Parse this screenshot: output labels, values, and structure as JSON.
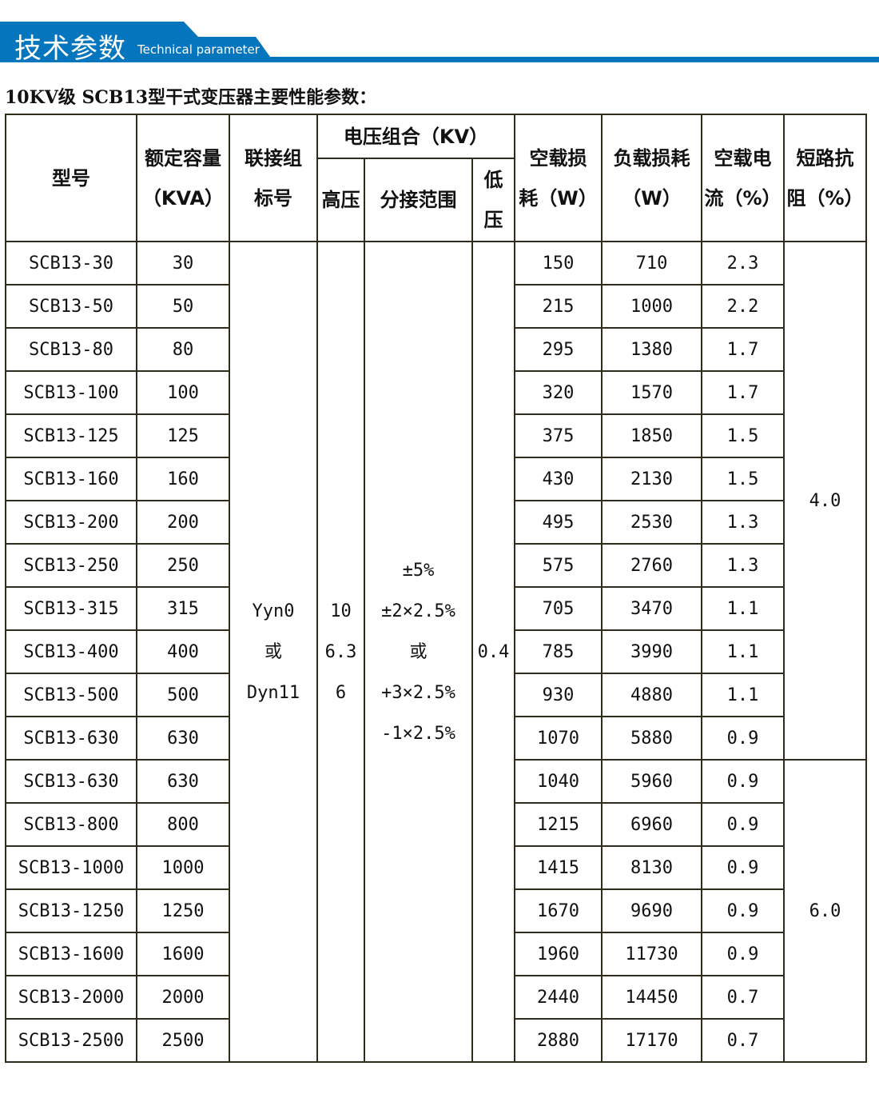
{
  "header": {
    "title": "技术参数",
    "subtitle": "Technical parameter",
    "color": "#0575bd"
  },
  "caption": "10KV级 SCB13型干式变压器主要性能参数：",
  "table": {
    "col_model": "型号",
    "col_capacity": [
      "额定容量",
      "（KVA）"
    ],
    "col_group": [
      "联接组",
      "标号"
    ],
    "col_voltage": "电压组合（KV）",
    "col_hv": "高压",
    "col_tap": "分接范围",
    "col_lv": [
      "低",
      "压"
    ],
    "col_noload_loss": [
      "空载损",
      "耗（W）"
    ],
    "col_load_loss": [
      "负载损耗",
      "（W）"
    ],
    "col_noload_current": [
      "空载电",
      "流（%）"
    ],
    "col_impedance": [
      "短路抗",
      "阻（%）"
    ],
    "group_value": [
      "Yyn0",
      "或",
      "Dyn11"
    ],
    "hv_value": [
      "10",
      "6.3",
      "6"
    ],
    "tap_value": [
      "±5%",
      "±2×2.5%",
      "或",
      "+3×2.5%",
      "-1×2.5%"
    ],
    "lv_value": "0.4",
    "impedance_values": [
      "4.0",
      "6.0"
    ],
    "rows": [
      [
        "SCB13-30",
        "30",
        "150",
        "710",
        "2.3"
      ],
      [
        "SCB13-50",
        "50",
        "215",
        "1000",
        "2.2"
      ],
      [
        "SCB13-80",
        "80",
        "295",
        "1380",
        "1.7"
      ],
      [
        "SCB13-100",
        "100",
        "320",
        "1570",
        "1.7"
      ],
      [
        "SCB13-125",
        "125",
        "375",
        "1850",
        "1.5"
      ],
      [
        "SCB13-160",
        "160",
        "430",
        "2130",
        "1.5"
      ],
      [
        "SCB13-200",
        "200",
        "495",
        "2530",
        "1.3"
      ],
      [
        "SCB13-250",
        "250",
        "575",
        "2760",
        "1.3"
      ],
      [
        "SCB13-315",
        "315",
        "705",
        "3470",
        "1.1"
      ],
      [
        "SCB13-400",
        "400",
        "785",
        "3990",
        "1.1"
      ],
      [
        "SCB13-500",
        "500",
        "930",
        "4880",
        "1.1"
      ],
      [
        "SCB13-630",
        "630",
        "1070",
        "5880",
        "0.9"
      ],
      [
        "SCB13-630",
        "630",
        "1040",
        "5960",
        "0.9"
      ],
      [
        "SCB13-800",
        "800",
        "1215",
        "6960",
        "0.9"
      ],
      [
        "SCB13-1000",
        "1000",
        "1415",
        "8130",
        "0.9"
      ],
      [
        "SCB13-1250",
        "1250",
        "1670",
        "9690",
        "0.9"
      ],
      [
        "SCB13-1600",
        "1600",
        "1960",
        "11730",
        "0.9"
      ],
      [
        "SCB13-2000",
        "2000",
        "2440",
        "14450",
        "0.7"
      ],
      [
        "SCB13-2500",
        "2500",
        "2880",
        "17170",
        "0.7"
      ]
    ]
  }
}
